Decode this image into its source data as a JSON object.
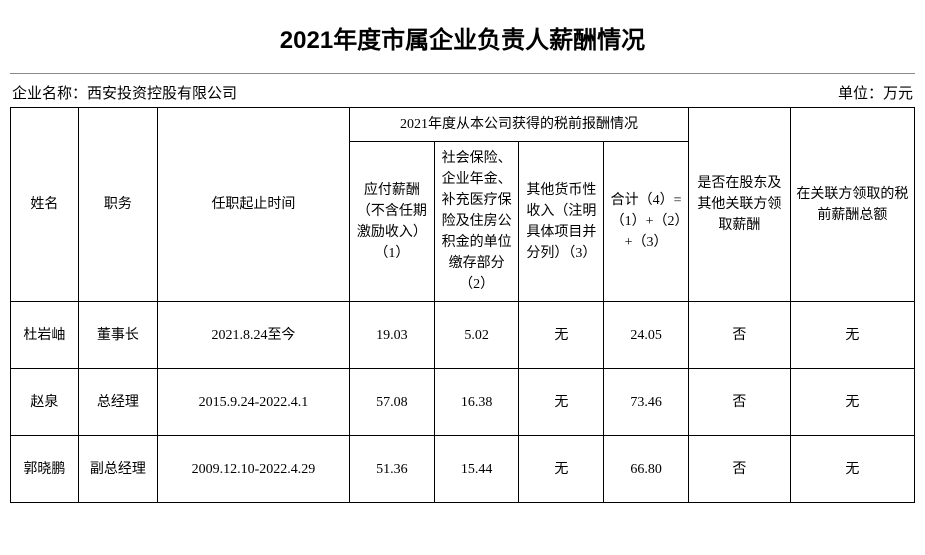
{
  "title": "2021年度市属企业负责人薪酬情况",
  "meta": {
    "company_label": "企业名称：",
    "company_name": "西安投资控股有限公司",
    "unit_label": "单位：万元"
  },
  "headers": {
    "name": "姓名",
    "position": "职务",
    "tenure": "任职起止时间",
    "group": "2021年度从本公司获得的税前报酬情况",
    "col1": "应付薪酬（不含任期激励收入）（1）",
    "col2": "社会保险、企业年金、补充医疗保险及住房公积金的单位缴存部分（2）",
    "col3": "其他货币性收入（注明具体项目并分列）（3）",
    "col4": "合计（4）=（1）+（2）+（3）",
    "flag": "是否在股东及其他关联方领取薪酬",
    "ext": "在关联方领取的税前薪酬总额"
  },
  "rows": [
    {
      "name": "杜岩岫",
      "position": "董事长",
      "tenure": "2021.8.24至今",
      "c1": "19.03",
      "c2": "5.02",
      "c3": "无",
      "c4": "24.05",
      "flag": "否",
      "ext": "无"
    },
    {
      "name": "赵泉",
      "position": "总经理",
      "tenure": "2015.9.24-2022.4.1",
      "c1": "57.08",
      "c2": "16.38",
      "c3": "无",
      "c4": "73.46",
      "flag": "否",
      "ext": "无"
    },
    {
      "name": "郭晓鹏",
      "position": "副总经理",
      "tenure": "2009.12.10-2022.4.29",
      "c1": "51.36",
      "c2": "15.44",
      "c3": "无",
      "c4": "66.80",
      "flag": "否",
      "ext": "无"
    }
  ]
}
